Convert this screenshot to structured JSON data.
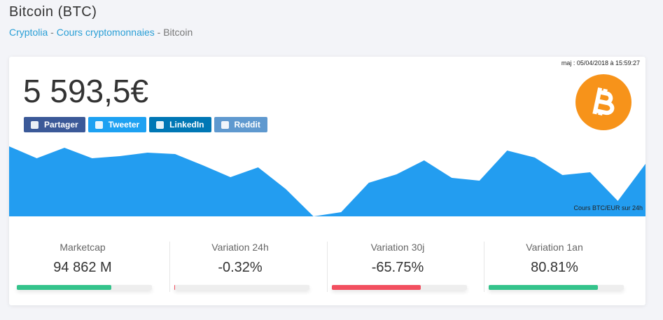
{
  "header": {
    "title": "Bitcoin (BTC)",
    "breadcrumb": [
      "Cryptolia",
      "Cours cryptomonnaies",
      "Bitcoin"
    ],
    "separator": "-"
  },
  "card": {
    "updated": "maj : 05/04/2018 à 15:59:27",
    "price": {
      "value": 5593.5,
      "label": "5 593,5€"
    },
    "share": [
      {
        "label": "Partager",
        "color": "#3b5998"
      },
      {
        "label": "Tweeter",
        "color": "#1da1f2"
      },
      {
        "label": "LinkedIn",
        "color": "#0077b5"
      },
      {
        "label": "Reddit",
        "color": "#5f99cf"
      }
    ],
    "stats": [
      {
        "label": "Marketcap",
        "value": 94862,
        "value_label": "94 862 M",
        "color": "#34c38b"
      },
      {
        "label": "Variation 24h",
        "value": -0.32,
        "value_label": "-0.32%",
        "color": "#f24f5f"
      },
      {
        "label": "Variation 30j",
        "value": -65.75,
        "value_label": "-65.75%",
        "color": "#f24f5f"
      },
      {
        "label": "Variation 1an",
        "value": 80.81,
        "value_label": "80.81%",
        "color": "#34c38b"
      }
    ]
  },
  "chart_data": {
    "type": "area",
    "caption": "Cours BTC/EUR sur 24h",
    "color": "#239df0",
    "ylim": [
      0,
      100
    ],
    "values": [
      100,
      83,
      98,
      83,
      86,
      91,
      89,
      73,
      56,
      70,
      39,
      0,
      6,
      48,
      60,
      80,
      55,
      51,
      94,
      84,
      59,
      63,
      22,
      75
    ]
  }
}
